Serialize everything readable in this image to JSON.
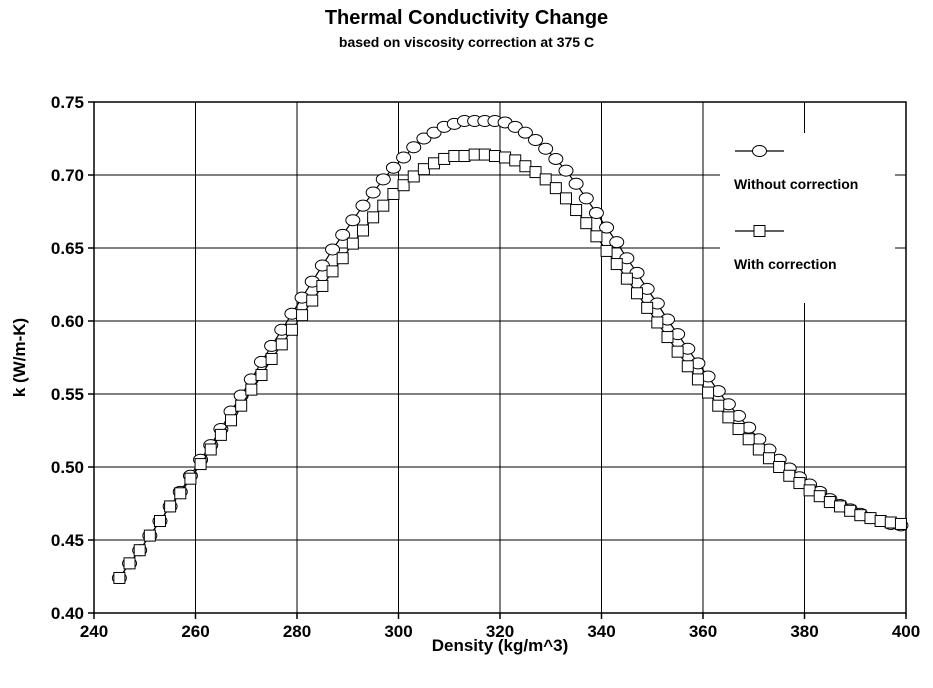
{
  "chart_data": {
    "type": "line",
    "title": "Thermal Conductivity Change",
    "subtitle": "based on viscosity correction at 375 C",
    "xlabel": "Density (kg/m^3)",
    "ylabel": "k (W/m-K)",
    "xlim": [
      240,
      400
    ],
    "ylim": [
      0.4,
      0.75
    ],
    "xticks": [
      240,
      260,
      280,
      300,
      320,
      340,
      360,
      380,
      400
    ],
    "yticks": [
      "0.40",
      "0.45",
      "0.50",
      "0.55",
      "0.60",
      "0.65",
      "0.70",
      "0.75"
    ],
    "grid": true,
    "legend_position": "top-right",
    "series": [
      {
        "name": "Without correction",
        "marker": "circle",
        "x": [
          245,
          247,
          249,
          251,
          253,
          255,
          257,
          259,
          261,
          263,
          265,
          267,
          269,
          271,
          273,
          275,
          277,
          279,
          281,
          283,
          285,
          287,
          289,
          291,
          293,
          295,
          297,
          299,
          301,
          303,
          305,
          307,
          309,
          311,
          313,
          315,
          317,
          319,
          321,
          323,
          325,
          327,
          329,
          331,
          333,
          335,
          337,
          339,
          341,
          343,
          345,
          347,
          349,
          351,
          353,
          355,
          357,
          359,
          361,
          363,
          365,
          367,
          369,
          371,
          373,
          375,
          377,
          379,
          381,
          383,
          385,
          387,
          389,
          391,
          393,
          395,
          397,
          399
        ],
        "y": [
          0.424,
          0.434,
          0.443,
          0.453,
          0.463,
          0.473,
          0.483,
          0.494,
          0.505,
          0.515,
          0.526,
          0.538,
          0.549,
          0.56,
          0.572,
          0.583,
          0.594,
          0.605,
          0.616,
          0.627,
          0.638,
          0.649,
          0.659,
          0.669,
          0.679,
          0.688,
          0.697,
          0.705,
          0.712,
          0.719,
          0.725,
          0.729,
          0.733,
          0.735,
          0.737,
          0.737,
          0.737,
          0.737,
          0.736,
          0.733,
          0.729,
          0.724,
          0.718,
          0.711,
          0.703,
          0.694,
          0.684,
          0.674,
          0.664,
          0.654,
          0.643,
          0.633,
          0.622,
          0.612,
          0.601,
          0.591,
          0.581,
          0.571,
          0.562,
          0.552,
          0.543,
          0.535,
          0.527,
          0.519,
          0.512,
          0.505,
          0.499,
          0.493,
          0.488,
          0.483,
          0.478,
          0.474,
          0.471,
          0.468,
          0.465,
          0.463,
          0.461,
          0.46
        ]
      },
      {
        "name": "With correction",
        "marker": "square",
        "x": [
          245,
          247,
          249,
          251,
          253,
          255,
          257,
          259,
          261,
          263,
          265,
          267,
          269,
          271,
          273,
          275,
          277,
          279,
          281,
          283,
          285,
          287,
          289,
          291,
          293,
          295,
          297,
          299,
          301,
          303,
          305,
          307,
          309,
          311,
          313,
          315,
          317,
          319,
          321,
          323,
          325,
          327,
          329,
          331,
          333,
          335,
          337,
          339,
          341,
          343,
          345,
          347,
          349,
          351,
          353,
          355,
          357,
          359,
          361,
          363,
          365,
          367,
          369,
          371,
          373,
          375,
          377,
          379,
          381,
          383,
          385,
          387,
          389,
          391,
          393,
          395,
          397,
          399
        ],
        "y": [
          0.424,
          0.434,
          0.443,
          0.453,
          0.463,
          0.473,
          0.482,
          0.492,
          0.502,
          0.512,
          0.522,
          0.532,
          0.542,
          0.553,
          0.563,
          0.574,
          0.584,
          0.594,
          0.604,
          0.614,
          0.624,
          0.634,
          0.643,
          0.653,
          0.662,
          0.671,
          0.679,
          0.687,
          0.693,
          0.699,
          0.704,
          0.708,
          0.711,
          0.713,
          0.713,
          0.714,
          0.714,
          0.713,
          0.712,
          0.71,
          0.706,
          0.702,
          0.697,
          0.691,
          0.684,
          0.676,
          0.667,
          0.658,
          0.648,
          0.639,
          0.629,
          0.619,
          0.609,
          0.599,
          0.589,
          0.579,
          0.569,
          0.56,
          0.551,
          0.542,
          0.534,
          0.526,
          0.519,
          0.512,
          0.506,
          0.5,
          0.494,
          0.489,
          0.484,
          0.48,
          0.476,
          0.473,
          0.47,
          0.467,
          0.465,
          0.463,
          0.462,
          0.461
        ]
      }
    ]
  }
}
